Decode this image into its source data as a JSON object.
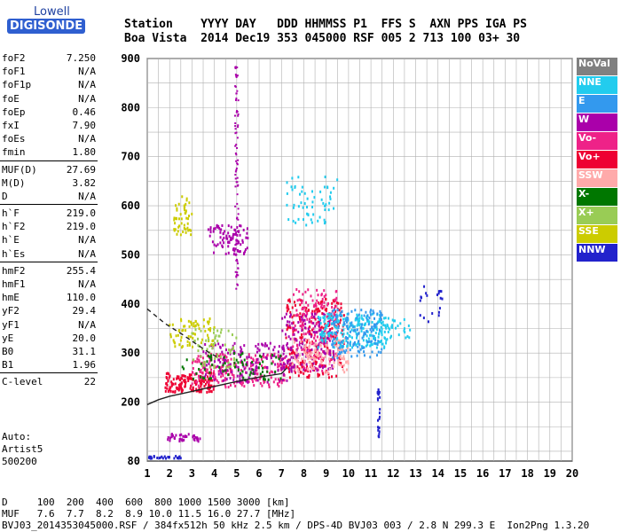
{
  "logo": {
    "line1": "Lowell",
    "line2": "DIGISONDE"
  },
  "header": {
    "row1": "Station    YYYY DAY   DDD HHMMSS P1  FFS S  AXN PPS IGA PS",
    "row2": "Boa Vista  2014 Dec19 353 045000 RSF 005 2 713 100 03+ 30"
  },
  "params": [
    [
      {
        "name": "foF2",
        "value": "7.250"
      },
      {
        "name": "foF1",
        "value": "N/A"
      },
      {
        "name": "foF1p",
        "value": "N/A"
      },
      {
        "name": "foE",
        "value": "N/A"
      },
      {
        "name": "foEp",
        "value": "0.46"
      },
      {
        "name": "fxI",
        "value": "7.90"
      },
      {
        "name": "foEs",
        "value": "N/A"
      },
      {
        "name": "fmin",
        "value": "1.80"
      }
    ],
    [
      {
        "name": "MUF(D)",
        "value": "27.69"
      },
      {
        "name": "M(D)",
        "value": "3.82"
      },
      {
        "name": "D",
        "value": "N/A"
      }
    ],
    [
      {
        "name": "h`F",
        "value": "219.0"
      },
      {
        "name": "h`F2",
        "value": "219.0"
      },
      {
        "name": "h`E",
        "value": "N/A"
      },
      {
        "name": "h`Es",
        "value": "N/A"
      }
    ],
    [
      {
        "name": "hmF2",
        "value": "255.4"
      },
      {
        "name": "hmF1",
        "value": "N/A"
      },
      {
        "name": "hmE",
        "value": "110.0"
      },
      {
        "name": "yF2",
        "value": "29.4"
      },
      {
        "name": "yF1",
        "value": "N/A"
      },
      {
        "name": "yE",
        "value": "20.0"
      },
      {
        "name": "B0",
        "value": "31.1"
      },
      {
        "name": "B1",
        "value": "1.96"
      }
    ],
    [
      {
        "name": "C-level",
        "value": "22"
      }
    ]
  ],
  "footer_left": [
    "Auto:",
    "Artist5",
    "500200"
  ],
  "bottom": {
    "d_row": "D     100  200  400  600  800 1000 1500 3000 [km]",
    "muf_row": "MUF   7.6  7.7  8.2  8.9 10.0 11.5 16.0 27.7 [MHz]",
    "info_row": "BVJ03_2014353045000.RSF / 384fx512h 50 kHz 2.5 km / DPS-4D BVJ03 003 / 2.8 N 299.3 E  Ion2Png 1.3.20"
  },
  "legend": [
    {
      "label": "NoVal",
      "color": "#808080"
    },
    {
      "label": "NNE",
      "color": "#22ccee"
    },
    {
      "label": "E",
      "color": "#3399ee"
    },
    {
      "label": "W",
      "color": "#aa00aa"
    },
    {
      "label": "Vo-",
      "color": "#ee2288"
    },
    {
      "label": "Vo+",
      "color": "#ee0033"
    },
    {
      "label": "SSW",
      "color": "#ffaaaa"
    },
    {
      "label": "X-",
      "color": "#007700"
    },
    {
      "label": "X+",
      "color": "#99cc55"
    },
    {
      "label": "SSE",
      "color": "#cccc00"
    },
    {
      "label": "NNW",
      "color": "#2222cc"
    }
  ],
  "chart_data": {
    "type": "scatter",
    "xlabel": "",
    "ylabel": "",
    "xlim": [
      1,
      20
    ],
    "ylim": [
      80,
      900
    ],
    "x_ticks": [
      1,
      2,
      3,
      4,
      5,
      6,
      7,
      8,
      9,
      10,
      11,
      12,
      13,
      14,
      15,
      16,
      17,
      18,
      19,
      20
    ],
    "y_ticks": [
      80,
      200,
      300,
      400,
      500,
      600,
      700,
      800,
      900
    ],
    "grid": true,
    "clusters": [
      {
        "series": "Vo+",
        "x": [
          1.8,
          4.0
        ],
        "y": [
          220,
          260
        ],
        "n": 160
      },
      {
        "series": "Vo-",
        "x": [
          3.0,
          7.2
        ],
        "y": [
          230,
          300
        ],
        "n": 220
      },
      {
        "series": "W",
        "x": [
          3.5,
          7.5
        ],
        "y": [
          240,
          320
        ],
        "n": 160
      },
      {
        "series": "Vo+",
        "x": [
          7.2,
          9.8
        ],
        "y": [
          250,
          410
        ],
        "n": 260
      },
      {
        "series": "Vo-",
        "x": [
          7.5,
          9.5
        ],
        "y": [
          260,
          430
        ],
        "n": 180
      },
      {
        "series": "W",
        "x": [
          7.0,
          9.5
        ],
        "y": [
          260,
          380
        ],
        "n": 140
      },
      {
        "series": "SSW",
        "x": [
          7.5,
          10.0
        ],
        "y": [
          260,
          330
        ],
        "n": 120
      },
      {
        "series": "NNE",
        "x": [
          8.6,
          11.8
        ],
        "y": [
          310,
          380
        ],
        "n": 220
      },
      {
        "series": "E",
        "x": [
          9.2,
          11.5
        ],
        "y": [
          290,
          390
        ],
        "n": 140
      },
      {
        "series": "SSE",
        "x": [
          2.0,
          4.0
        ],
        "y": [
          310,
          370
        ],
        "n": 70
      },
      {
        "series": "X+",
        "x": [
          3.0,
          5.0
        ],
        "y": [
          270,
          350
        ],
        "n": 60
      },
      {
        "series": "X-",
        "x": [
          2.5,
          7.0
        ],
        "y": [
          245,
          300
        ],
        "n": 70
      },
      {
        "series": "W",
        "x": [
          3.7,
          5.5
        ],
        "y": [
          500,
          560
        ],
        "n": 90
      },
      {
        "series": "SSE",
        "x": [
          2.2,
          3.0
        ],
        "y": [
          540,
          620
        ],
        "n": 50
      },
      {
        "series": "NNE",
        "x": [
          7.2,
          9.5
        ],
        "y": [
          560,
          660
        ],
        "n": 60
      },
      {
        "series": "W",
        "x": [
          1.9,
          3.4
        ],
        "y": [
          120,
          135
        ],
        "n": 40
      },
      {
        "series": "NNW",
        "x": [
          1.0,
          2.5
        ],
        "y": [
          85,
          90
        ],
        "n": 30
      },
      {
        "series": "NNE",
        "x": [
          11.3,
          12.8
        ],
        "y": [
          330,
          370
        ],
        "n": 30
      },
      {
        "series": "NNW",
        "x": [
          13.2,
          14.2
        ],
        "y": [
          360,
          440
        ],
        "n": 20
      },
      {
        "series": "NNW",
        "x": [
          11.3,
          11.4
        ],
        "y": [
          120,
          230
        ],
        "n": 25
      }
    ],
    "profile_solid": [
      [
        1.0,
        195
      ],
      [
        1.5,
        205
      ],
      [
        2.0,
        212
      ],
      [
        3.0,
        222
      ],
      [
        4.0,
        232
      ],
      [
        5.0,
        242
      ],
      [
        6.0,
        251
      ],
      [
        7.0,
        258
      ],
      [
        7.25,
        270
      ]
    ],
    "profile_dashed": [
      [
        1.0,
        390
      ],
      [
        1.8,
        360
      ],
      [
        2.5,
        340
      ],
      [
        3.2,
        318
      ],
      [
        3.8,
        300
      ],
      [
        4.2,
        290
      ]
    ]
  }
}
